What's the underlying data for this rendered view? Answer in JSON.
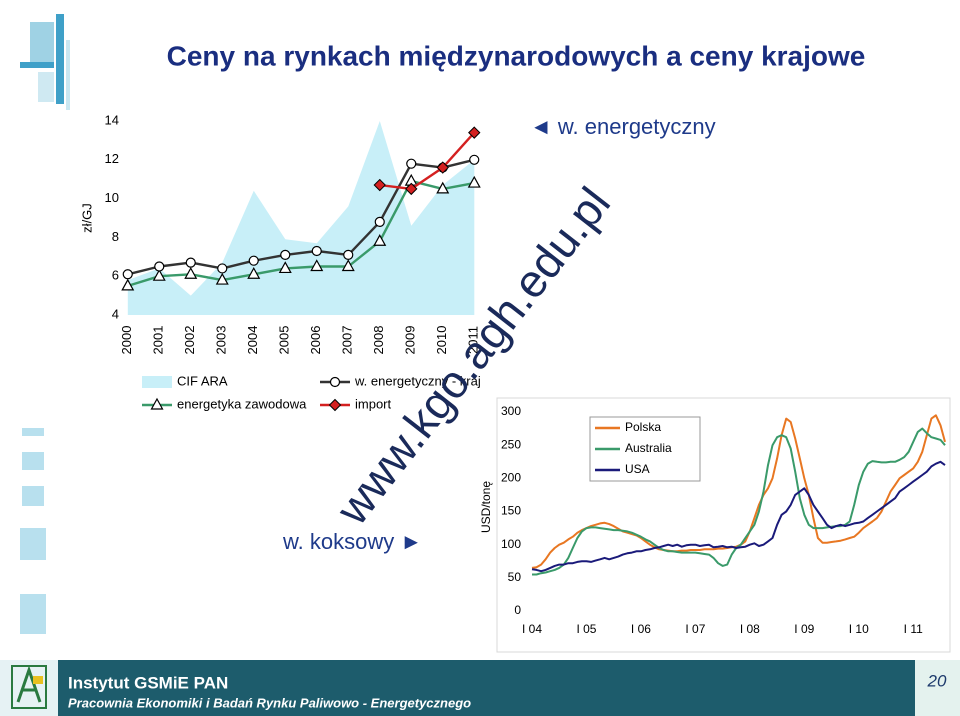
{
  "title": "Ceny na rynkach międzynarodowych a ceny krajowe",
  "annotations": [
    "◄ w. energetyczny",
    "w. koksowy ►"
  ],
  "watermark": "www.kgo.agh.edu.pl",
  "footer": {
    "institute": "Instytut GSMiE PAN",
    "department": "Pracownia Ekonomiki i Badań Rynku Paliwowo - Energetycznego",
    "page": 20
  },
  "chart_data": [
    {
      "type": "line",
      "y_label": "zł/GJ",
      "categories": [
        "2000",
        "2001",
        "2002",
        "2003",
        "2004",
        "2005",
        "2006",
        "2007",
        "2008",
        "2009",
        "2010",
        "2011"
      ],
      "ylim": [
        4,
        14
      ],
      "yticks": [
        4,
        6,
        8,
        10,
        12,
        14
      ],
      "legend": "bottom",
      "series": [
        {
          "name": "CIF ARA",
          "kind": "area",
          "color": "#c8eff8",
          "values": [
            5.8,
            6.4,
            5.0,
            6.7,
            10.4,
            7.9,
            7.7,
            9.6,
            14.0,
            8.6,
            10.7,
            12.0
          ]
        },
        {
          "name": "energetyka zawodowa",
          "color": "#3a9a6a",
          "marker": "triangle",
          "values": [
            5.5,
            6.0,
            6.1,
            5.8,
            6.1,
            6.4,
            6.5,
            6.5,
            7.8,
            10.9,
            10.5,
            10.8
          ]
        },
        {
          "name": "w. energetyczny - kraj",
          "color": "#333333",
          "marker": "circle",
          "values": [
            6.1,
            6.5,
            6.7,
            6.4,
            6.8,
            7.1,
            7.3,
            7.1,
            8.8,
            11.8,
            11.6,
            12.0
          ]
        },
        {
          "name": "import",
          "color": "#d42020",
          "marker": "diamond",
          "values": [
            null,
            null,
            null,
            null,
            null,
            null,
            null,
            null,
            10.7,
            10.5,
            11.6,
            13.4
          ]
        }
      ]
    },
    {
      "type": "line",
      "y_label": "USD/tonę",
      "categories": [
        "I 04",
        null,
        null,
        null,
        null,
        null,
        null,
        null,
        null,
        null,
        null,
        null,
        "I 05",
        null,
        null,
        null,
        null,
        null,
        null,
        null,
        null,
        null,
        null,
        null,
        "I 06",
        null,
        null,
        null,
        null,
        null,
        null,
        null,
        null,
        null,
        null,
        null,
        "I 07",
        null,
        null,
        null,
        null,
        null,
        null,
        null,
        null,
        null,
        null,
        null,
        "I 08",
        null,
        null,
        null,
        null,
        null,
        null,
        null,
        null,
        null,
        null,
        null,
        "I 09",
        null,
        null,
        null,
        null,
        null,
        null,
        null,
        null,
        null,
        null,
        null,
        "I 10",
        null,
        null,
        null,
        null,
        null,
        null,
        null,
        null,
        null,
        null,
        null,
        "I 11",
        null,
        null,
        null,
        null,
        null,
        null,
        null
      ],
      "ylim": [
        0,
        300
      ],
      "yticks": [
        0,
        50,
        100,
        150,
        200,
        250,
        300
      ],
      "legend": "inside-top",
      "series": [
        {
          "name": "Polska",
          "color": "#e87722",
          "values": [
            65,
            66,
            70,
            78,
            88,
            95,
            100,
            103,
            108,
            112,
            118,
            122,
            125,
            128,
            130,
            132,
            133,
            131,
            128,
            124,
            120,
            118,
            116,
            114,
            110,
            105,
            100,
            96,
            93,
            92,
            91,
            90,
            90,
            91,
            91,
            92,
            92,
            92,
            93,
            93,
            93,
            94,
            94,
            95,
            96,
            97,
            100,
            105,
            120,
            140,
            160,
            175,
            185,
            200,
            230,
            265,
            290,
            285,
            260,
            230,
            200,
            175,
            140,
            110,
            103,
            103,
            104,
            105,
            106,
            108,
            110,
            112,
            118,
            125,
            130,
            135,
            140,
            150,
            165,
            180,
            190,
            200,
            205,
            210,
            215,
            225,
            240,
            265,
            290,
            295,
            280,
            255
          ]
        },
        {
          "name": "Australia",
          "color": "#3a9a6a",
          "values": [
            55,
            55,
            57,
            58,
            60,
            62,
            65,
            70,
            80,
            95,
            110,
            120,
            125,
            126,
            126,
            125,
            124,
            123,
            122,
            122,
            121,
            120,
            118,
            115,
            112,
            108,
            105,
            100,
            95,
            92,
            90,
            90,
            89,
            88,
            88,
            88,
            88,
            87,
            86,
            85,
            80,
            72,
            68,
            70,
            85,
            95,
            100,
            110,
            120,
            130,
            150,
            180,
            220,
            250,
            262,
            265,
            262,
            245,
            210,
            170,
            145,
            130,
            125,
            125,
            125,
            126,
            127,
            128,
            128,
            130,
            135,
            160,
            190,
            210,
            222,
            226,
            225,
            224,
            224,
            225,
            225,
            228,
            232,
            240,
            255,
            270,
            275,
            268,
            262,
            260,
            258,
            250
          ]
        },
        {
          "name": "USA",
          "color": "#1a1a7a",
          "values": [
            63,
            62,
            60,
            62,
            65,
            68,
            70,
            70,
            72,
            72,
            74,
            75,
            75,
            74,
            76,
            78,
            80,
            78,
            80,
            82,
            85,
            87,
            88,
            90,
            90,
            92,
            93,
            95,
            96,
            98,
            100,
            98,
            100,
            97,
            99,
            100,
            100,
            98,
            99,
            100,
            96,
            97,
            98,
            96,
            97,
            95,
            96,
            97,
            100,
            102,
            98,
            100,
            105,
            110,
            130,
            145,
            150,
            160,
            175,
            180,
            185,
            175,
            160,
            150,
            140,
            130,
            125,
            128,
            130,
            128,
            130,
            132,
            133,
            135,
            140,
            145,
            150,
            155,
            160,
            165,
            170,
            180,
            185,
            190,
            195,
            200,
            205,
            210,
            218,
            222,
            225,
            220
          ]
        }
      ]
    }
  ]
}
